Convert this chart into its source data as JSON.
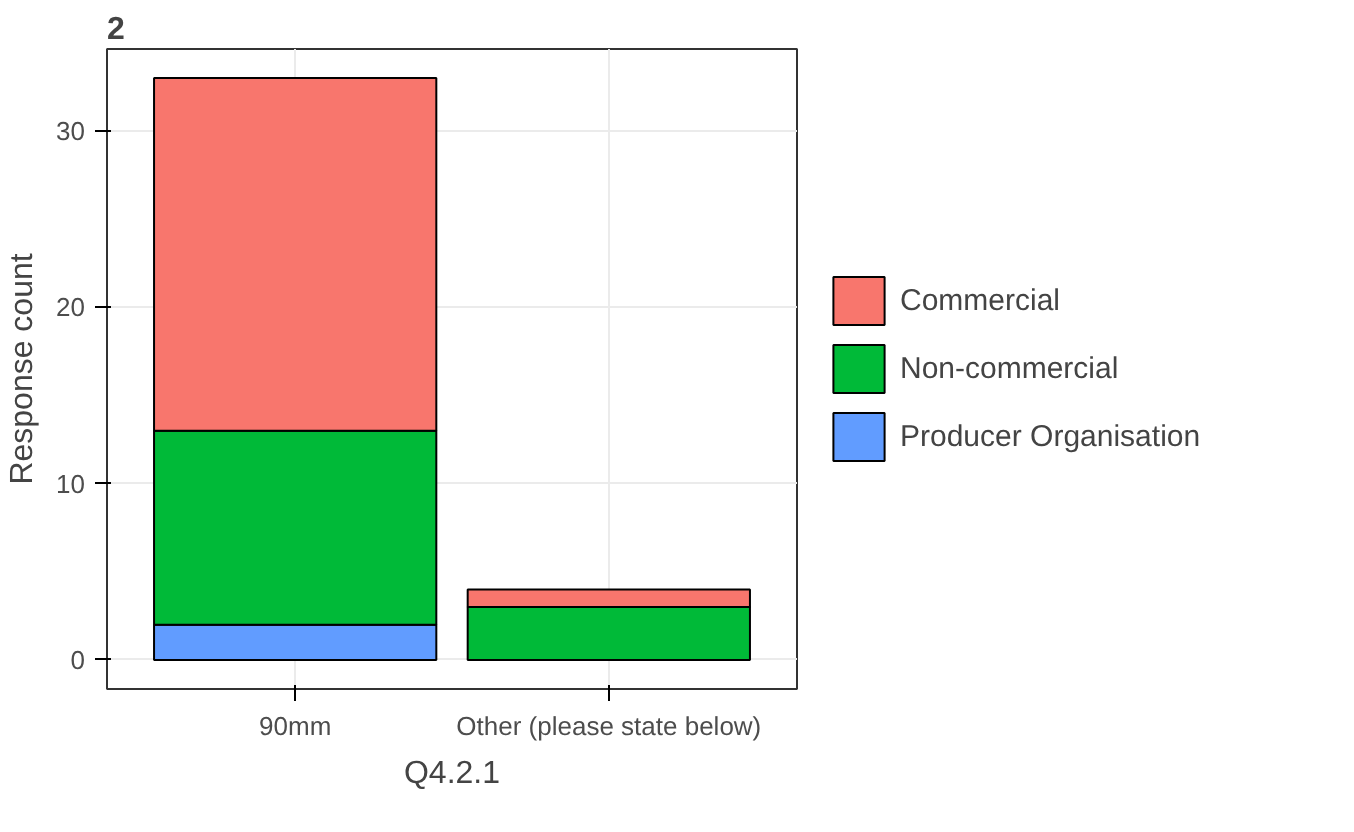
{
  "chart_data": {
    "type": "bar",
    "stacked": true,
    "xlabel": "Q4.2.1",
    "ylabel": "Response count",
    "categories": [
      "90mm",
      "Other (please state below)"
    ],
    "series": [
      {
        "name": "Producer Organisation",
        "color": "#619cff",
        "values": [
          2,
          0
        ]
      },
      {
        "name": "Non-commercial",
        "color": "#00ba38",
        "values": [
          11,
          3
        ]
      },
      {
        "name": "Commercial",
        "color": "#f8766d",
        "values": [
          20,
          1
        ]
      }
    ],
    "ylim": [
      -1.65,
      34.65
    ],
    "yticks": [
      0,
      10,
      20,
      30
    ],
    "grid": true,
    "legend": "right",
    "annotations": [
      "2"
    ]
  }
}
